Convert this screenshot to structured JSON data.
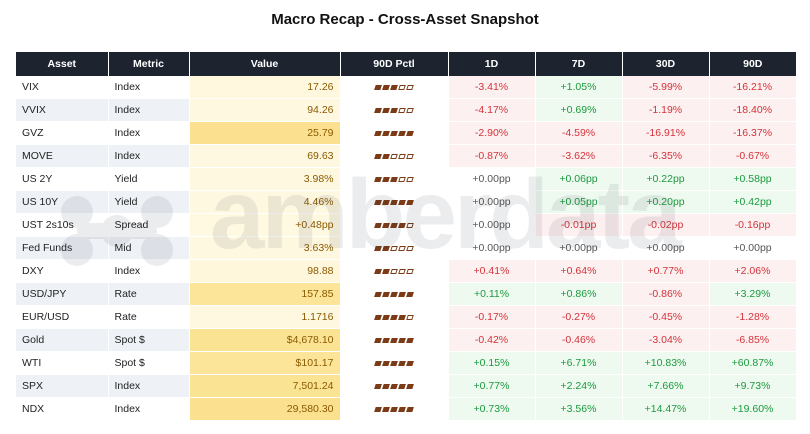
{
  "title": "Macro Recap - Cross-Asset Snapshot",
  "watermark": "amberdata",
  "headers": {
    "asset": "Asset",
    "metric": "Metric",
    "value": "Value",
    "pctl": "90D Pctl",
    "d1": "1D",
    "d7": "7D",
    "d30": "30D",
    "d90": "90D"
  },
  "colors": {
    "header_bg": "#1d2430",
    "pctl_bar": "#7a3b16",
    "positive_text": "#1c9a3e",
    "negative_text": "#d4333a",
    "neutral_text": "#555555",
    "value_text": "#8a5a00",
    "value_scale_low": "#fffbea",
    "value_scale_high": "#fbe08a"
  },
  "chart_data": {
    "type": "table",
    "columns": [
      "Asset",
      "Metric",
      "Value",
      "90D Pctl",
      "1D",
      "7D",
      "30D",
      "90D"
    ],
    "rows": [
      {
        "asset": "VIX",
        "metric": "Index",
        "value": "17.26",
        "value_level": 0.12,
        "pctl_filled": 3,
        "d1": "-3.41%",
        "d7": "+1.05%",
        "d30": "-5.99%",
        "d90": "-16.21%",
        "s1": -1,
        "s7": 1,
        "s30": -1,
        "s90": -1
      },
      {
        "asset": "VVIX",
        "metric": "Index",
        "value": "94.26",
        "value_level": 0.1,
        "pctl_filled": 3,
        "d1": "-4.17%",
        "d7": "+0.69%",
        "d30": "-1.19%",
        "d90": "-18.40%",
        "s1": -1,
        "s7": 1,
        "s30": -1,
        "s90": -1
      },
      {
        "asset": "GVZ",
        "metric": "Index",
        "value": "25.79",
        "value_level": 0.95,
        "pctl_filled": 5,
        "d1": "-2.90%",
        "d7": "-4.59%",
        "d30": "-16.91%",
        "d90": "-16.37%",
        "s1": -1,
        "s7": -1,
        "s30": -1,
        "s90": -1
      },
      {
        "asset": "MOVE",
        "metric": "Index",
        "value": "69.63",
        "value_level": 0.1,
        "pctl_filled": 2,
        "d1": "-0.87%",
        "d7": "-3.62%",
        "d30": "-6.35%",
        "d90": "-0.67%",
        "s1": -1,
        "s7": -1,
        "s30": -1,
        "s90": -1
      },
      {
        "asset": "US 2Y",
        "metric": "Yield",
        "value": "3.98%",
        "value_level": 0.1,
        "pctl_filled": 3,
        "d1": "+0.00pp",
        "d7": "+0.06pp",
        "d30": "+0.22pp",
        "d90": "+0.58pp",
        "s1": 0,
        "s7": 1,
        "s30": 1,
        "s90": 1
      },
      {
        "asset": "US 10Y",
        "metric": "Yield",
        "value": "4.46%",
        "value_level": 0.1,
        "pctl_filled": 5,
        "d1": "+0.00pp",
        "d7": "+0.05pp",
        "d30": "+0.20pp",
        "d90": "+0.42pp",
        "s1": 0,
        "s7": 1,
        "s30": 1,
        "s90": 1
      },
      {
        "asset": "UST 2s10s",
        "metric": "Spread",
        "value": "+0.48pp",
        "value_level": 0.08,
        "pctl_filled": 4,
        "d1": "+0.00pp",
        "d7": "-0.01pp",
        "d30": "-0.02pp",
        "d90": "-0.16pp",
        "s1": 0,
        "s7": -1,
        "s30": -1,
        "s90": -1
      },
      {
        "asset": "Fed Funds",
        "metric": "Mid",
        "value": "3.63%",
        "value_level": 0.1,
        "pctl_filled": 2,
        "d1": "+0.00pp",
        "d7": "+0.00pp",
        "d30": "+0.00pp",
        "d90": "+0.00pp",
        "s1": 0,
        "s7": 0,
        "s30": 0,
        "s90": 0
      },
      {
        "asset": "DXY",
        "metric": "Index",
        "value": "98.88",
        "value_level": 0.15,
        "pctl_filled": 2,
        "d1": "+0.41%",
        "d7": "+0.64%",
        "d30": "+0.77%",
        "d90": "+2.06%",
        "s1": -1,
        "s7": -1,
        "s30": -1,
        "s90": -1
      },
      {
        "asset": "USD/JPY",
        "metric": "Rate",
        "value": "157.85",
        "value_level": 0.85,
        "pctl_filled": 5,
        "d1": "+0.11%",
        "d7": "+0.86%",
        "d30": "-0.86%",
        "d90": "+3.29%",
        "s1": 1,
        "s7": 1,
        "s30": -1,
        "s90": 1
      },
      {
        "asset": "EUR/USD",
        "metric": "Rate",
        "value": "1.1716",
        "value_level": 0.1,
        "pctl_filled": 4,
        "d1": "-0.17%",
        "d7": "-0.27%",
        "d30": "-0.45%",
        "d90": "-1.28%",
        "s1": -1,
        "s7": -1,
        "s30": -1,
        "s90": -1
      },
      {
        "asset": "Gold",
        "metric": "Spot $",
        "value": "$4,678.10",
        "value_level": 0.9,
        "pctl_filled": 5,
        "d1": "-0.42%",
        "d7": "-0.46%",
        "d30": "-3.04%",
        "d90": "-6.85%",
        "s1": -1,
        "s7": -1,
        "s30": -1,
        "s90": -1
      },
      {
        "asset": "WTI",
        "metric": "Spot $",
        "value": "$101.17",
        "value_level": 0.85,
        "pctl_filled": 5,
        "d1": "+0.15%",
        "d7": "+6.71%",
        "d30": "+10.83%",
        "d90": "+60.87%",
        "s1": 1,
        "s7": 1,
        "s30": 1,
        "s90": 1
      },
      {
        "asset": "SPX",
        "metric": "Index",
        "value": "7,501.24",
        "value_level": 0.9,
        "pctl_filled": 5,
        "d1": "+0.77%",
        "d7": "+2.24%",
        "d30": "+7.66%",
        "d90": "+9.73%",
        "s1": 1,
        "s7": 1,
        "s30": 1,
        "s90": 1
      },
      {
        "asset": "NDX",
        "metric": "Index",
        "value": "29,580.30",
        "value_level": 0.95,
        "pctl_filled": 5,
        "d1": "+0.73%",
        "d7": "+3.56%",
        "d30": "+14.47%",
        "d90": "+19.60%",
        "s1": 1,
        "s7": 1,
        "s30": 1,
        "s90": 1
      }
    ]
  }
}
